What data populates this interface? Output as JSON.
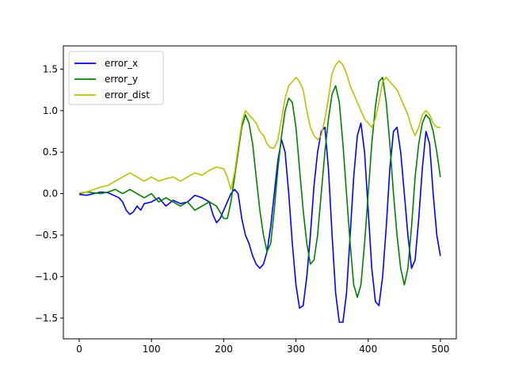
{
  "chart_data": {
    "type": "line",
    "title": "",
    "xlabel": "",
    "ylabel": "",
    "xlim": [
      -22,
      522
    ],
    "ylim": [
      -1.75,
      1.78
    ],
    "xticks": [
      0,
      100,
      200,
      300,
      400,
      500
    ],
    "yticks": [
      -1.5,
      -1.0,
      -0.5,
      0.0,
      0.5,
      1.0,
      1.5
    ],
    "xtick_labels": [
      "0",
      "100",
      "200",
      "300",
      "400",
      "500"
    ],
    "ytick_labels": [
      "−1.5",
      "−1.0",
      "−0.5",
      "0.0",
      "0.5",
      "1.0",
      "1.5"
    ],
    "grid": false,
    "legend_position": "upper-left",
    "series": [
      {
        "name": "error_x",
        "color": "#0000ff",
        "x": [
          0,
          10,
          20,
          30,
          40,
          50,
          55,
          60,
          65,
          70,
          75,
          80,
          85,
          90,
          100,
          110,
          120,
          130,
          140,
          150,
          160,
          170,
          180,
          185,
          190,
          195,
          200,
          205,
          210,
          215,
          220,
          225,
          230,
          235,
          240,
          245,
          250,
          255,
          260,
          265,
          270,
          275,
          280,
          285,
          290,
          295,
          300,
          305,
          310,
          315,
          320,
          325,
          330,
          335,
          340,
          345,
          350,
          355,
          360,
          365,
          370,
          375,
          380,
          385,
          390,
          395,
          400,
          405,
          410,
          415,
          420,
          425,
          430,
          435,
          440,
          445,
          450,
          455,
          460,
          465,
          470,
          475,
          480,
          485,
          490,
          495,
          500
        ],
        "y": [
          -0.01,
          -0.02,
          0.0,
          0.02,
          0.01,
          -0.03,
          -0.05,
          -0.1,
          -0.2,
          -0.25,
          -0.22,
          -0.15,
          -0.2,
          -0.12,
          -0.1,
          -0.05,
          -0.15,
          -0.08,
          -0.12,
          -0.1,
          -0.02,
          -0.05,
          -0.1,
          -0.25,
          -0.35,
          -0.3,
          -0.2,
          -0.1,
          0.0,
          0.05,
          0.0,
          -0.3,
          -0.5,
          -0.6,
          -0.75,
          -0.85,
          -0.9,
          -0.85,
          -0.7,
          -0.4,
          0.0,
          0.4,
          0.65,
          0.5,
          0.0,
          -0.6,
          -1.1,
          -1.38,
          -1.35,
          -1.0,
          -0.5,
          0.1,
          0.5,
          0.75,
          0.8,
          0.3,
          -0.5,
          -1.2,
          -1.55,
          -1.55,
          -1.2,
          -0.5,
          0.2,
          0.7,
          0.85,
          0.5,
          -0.2,
          -0.9,
          -1.3,
          -1.35,
          -1.0,
          -0.4,
          0.3,
          0.75,
          0.8,
          0.5,
          0.0,
          -0.5,
          -0.9,
          -0.8,
          -0.3,
          0.3,
          0.75,
          0.6,
          0.0,
          -0.5,
          -0.75
        ]
      },
      {
        "name": "error_y",
        "color": "#008000",
        "x": [
          0,
          10,
          20,
          30,
          40,
          50,
          60,
          70,
          80,
          90,
          100,
          110,
          120,
          130,
          140,
          150,
          160,
          170,
          180,
          190,
          200,
          205,
          210,
          215,
          220,
          225,
          230,
          235,
          240,
          245,
          250,
          255,
          260,
          265,
          270,
          275,
          280,
          285,
          290,
          295,
          300,
          305,
          310,
          315,
          320,
          325,
          330,
          335,
          340,
          345,
          350,
          355,
          360,
          365,
          370,
          375,
          380,
          385,
          390,
          395,
          400,
          405,
          410,
          415,
          420,
          425,
          430,
          435,
          440,
          445,
          450,
          455,
          460,
          465,
          470,
          475,
          480,
          485,
          490,
          495,
          500
        ],
        "y": [
          0.0,
          0.02,
          0.01,
          0.0,
          0.02,
          0.05,
          0.0,
          0.05,
          0.0,
          -0.05,
          0.0,
          -0.1,
          -0.05,
          -0.1,
          -0.15,
          -0.1,
          -0.2,
          -0.15,
          -0.1,
          -0.15,
          -0.3,
          -0.3,
          -0.1,
          0.2,
          0.5,
          0.8,
          0.95,
          0.85,
          0.6,
          0.2,
          -0.2,
          -0.5,
          -0.7,
          -0.6,
          -0.2,
          0.3,
          0.7,
          1.0,
          1.15,
          1.1,
          0.8,
          0.3,
          -0.2,
          -0.6,
          -0.85,
          -0.8,
          -0.5,
          0.0,
          0.5,
          0.9,
          1.2,
          1.3,
          1.1,
          0.6,
          0.0,
          -0.6,
          -1.1,
          -1.25,
          -1.1,
          -0.6,
          0.0,
          0.6,
          1.05,
          1.35,
          1.4,
          1.1,
          0.6,
          0.0,
          -0.5,
          -0.9,
          -1.1,
          -0.9,
          -0.4,
          0.2,
          0.6,
          0.85,
          0.95,
          0.9,
          0.75,
          0.5,
          0.2
        ]
      },
      {
        "name": "error_dist",
        "color": "#bfbf00",
        "x": [
          0,
          10,
          20,
          30,
          40,
          50,
          60,
          70,
          80,
          90,
          100,
          110,
          120,
          130,
          140,
          150,
          160,
          170,
          180,
          190,
          200,
          205,
          210,
          215,
          220,
          225,
          230,
          235,
          240,
          245,
          250,
          255,
          260,
          265,
          270,
          275,
          280,
          285,
          290,
          295,
          300,
          305,
          310,
          315,
          320,
          325,
          330,
          335,
          340,
          345,
          350,
          355,
          360,
          365,
          370,
          375,
          380,
          385,
          390,
          395,
          400,
          405,
          410,
          415,
          420,
          425,
          430,
          435,
          440,
          445,
          450,
          455,
          460,
          465,
          470,
          475,
          480,
          485,
          490,
          495,
          500
        ],
        "y": [
          0.01,
          0.02,
          0.05,
          0.08,
          0.1,
          0.15,
          0.2,
          0.25,
          0.2,
          0.15,
          0.2,
          0.15,
          0.18,
          0.2,
          0.15,
          0.2,
          0.25,
          0.22,
          0.28,
          0.32,
          0.3,
          0.2,
          0.05,
          0.25,
          0.55,
          0.85,
          1.0,
          0.95,
          0.9,
          0.85,
          0.75,
          0.7,
          0.6,
          0.55,
          0.55,
          0.65,
          0.9,
          1.15,
          1.3,
          1.35,
          1.4,
          1.35,
          1.25,
          1.0,
          0.8,
          0.7,
          0.65,
          0.7,
          0.9,
          1.15,
          1.45,
          1.55,
          1.6,
          1.55,
          1.45,
          1.3,
          1.2,
          1.1,
          1.0,
          0.9,
          0.85,
          0.8,
          0.9,
          1.1,
          1.35,
          1.4,
          1.35,
          1.3,
          1.25,
          1.15,
          1.05,
          0.95,
          0.8,
          0.7,
          0.8,
          0.95,
          1.0,
          0.95,
          0.85,
          0.8,
          0.8
        ]
      }
    ]
  },
  "legend": {
    "items": [
      {
        "label": "error_x",
        "color": "#0000ff"
      },
      {
        "label": "error_y",
        "color": "#008000"
      },
      {
        "label": "error_dist",
        "color": "#bfbf00"
      }
    ]
  }
}
